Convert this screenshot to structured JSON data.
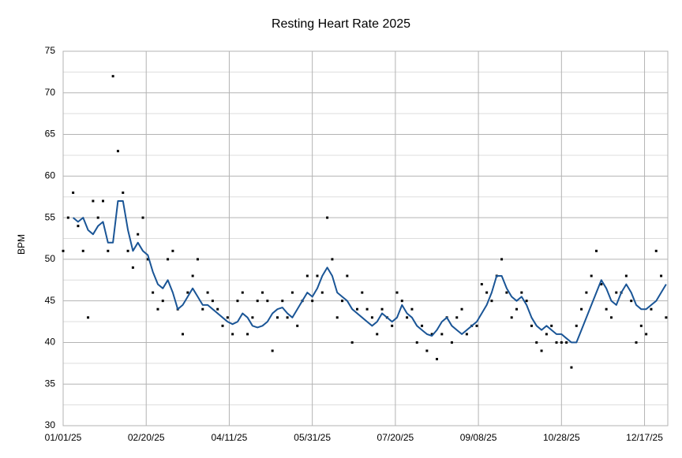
{
  "chart_data": {
    "type": "scatter",
    "title": "Resting Heart Rate 2025",
    "ylabel": "BPM",
    "x": [
      "01/01/25",
      "01/04/25",
      "01/07/25",
      "01/10/25",
      "01/13/25",
      "01/16/25",
      "01/19/25",
      "01/22/25",
      "01/25/25",
      "01/28/25",
      "01/31/25",
      "02/03/25",
      "02/06/25",
      "02/09/25",
      "02/12/25",
      "02/15/25",
      "02/18/25",
      "02/21/25",
      "02/24/25",
      "02/27/25",
      "03/02/25",
      "03/05/25",
      "03/08/25",
      "03/11/25",
      "03/14/25",
      "03/17/25",
      "03/20/25",
      "03/23/25",
      "03/26/25",
      "03/29/25",
      "04/01/25",
      "04/04/25",
      "04/07/25",
      "04/10/25",
      "04/13/25",
      "04/16/25",
      "04/19/25",
      "04/22/25",
      "04/25/25",
      "04/28/25",
      "05/01/25",
      "05/04/25",
      "05/07/25",
      "05/10/25",
      "05/13/25",
      "05/16/25",
      "05/19/25",
      "05/22/25",
      "05/25/25",
      "05/28/25",
      "05/31/25",
      "06/03/25",
      "06/06/25",
      "06/09/25",
      "06/12/25",
      "06/15/25",
      "06/18/25",
      "06/21/25",
      "06/24/25",
      "06/27/25",
      "06/30/25",
      "07/03/25",
      "07/06/25",
      "07/09/25",
      "07/12/25",
      "07/15/25",
      "07/18/25",
      "07/21/25",
      "07/24/25",
      "07/27/25",
      "07/30/25",
      "08/02/25",
      "08/05/25",
      "08/08/25",
      "08/11/25",
      "08/14/25",
      "08/17/25",
      "08/20/25",
      "08/23/25",
      "08/26/25",
      "08/29/25",
      "09/01/25",
      "09/04/25",
      "09/07/25",
      "09/10/25",
      "09/13/25",
      "09/16/25",
      "09/19/25",
      "09/22/25",
      "09/25/25",
      "09/28/25",
      "10/01/25",
      "10/04/25",
      "10/07/25",
      "10/10/25",
      "10/13/25",
      "10/16/25",
      "10/19/25",
      "10/22/25",
      "10/25/25",
      "10/28/25",
      "10/31/25",
      "11/03/25",
      "11/06/25",
      "11/09/25",
      "11/12/25",
      "11/15/25",
      "11/18/25",
      "11/21/25",
      "11/24/25",
      "11/27/25",
      "11/30/25",
      "12/03/25",
      "12/06/25",
      "12/09/25",
      "12/12/25",
      "12/15/25",
      "12/18/25",
      "12/21/25",
      "12/24/25",
      "12/27/25",
      "12/30/25"
    ],
    "series": [
      {
        "mode": "markers",
        "color": "#000000",
        "values": [
          51,
          55,
          58,
          54,
          51,
          43,
          57,
          55,
          57,
          51,
          72,
          63,
          58,
          51,
          49,
          53,
          55,
          50,
          46,
          44,
          45,
          50,
          51,
          44,
          41,
          46,
          48,
          50,
          44,
          46,
          45,
          44,
          42,
          43,
          41,
          45,
          46,
          41,
          43,
          45,
          46,
          45,
          39,
          43,
          45,
          43,
          46,
          42,
          45,
          48,
          45,
          48,
          46,
          55,
          50,
          43,
          45,
          48,
          40,
          44,
          46,
          44,
          43,
          41,
          44,
          43,
          42,
          46,
          45,
          43,
          44,
          40,
          42,
          39,
          41,
          38,
          41,
          43,
          40,
          43,
          44,
          41,
          42,
          42,
          47,
          46,
          45,
          48,
          50,
          46,
          43,
          44,
          46,
          45,
          42,
          40,
          39,
          41,
          42,
          40,
          40,
          40,
          37,
          42,
          44,
          46,
          48,
          51,
          47,
          44,
          43,
          46,
          46,
          48,
          45,
          40,
          42,
          41,
          44,
          51,
          48,
          43
        ]
      },
      {
        "mode": "line",
        "color": "#1a5596",
        "values": [
          null,
          null,
          55,
          54.5,
          55,
          53.5,
          53,
          54,
          54.5,
          52,
          52,
          57,
          57,
          53.5,
          51,
          52,
          51,
          50.5,
          48.5,
          47,
          46.5,
          47.5,
          46,
          44,
          44.5,
          45.5,
          46.5,
          45.5,
          44.5,
          44.5,
          44,
          43.5,
          43,
          42.5,
          42.2,
          42.5,
          43.5,
          43,
          42,
          41.8,
          42,
          42.5,
          43.5,
          44,
          44.2,
          43.5,
          43,
          44,
          45,
          46,
          45.5,
          46.5,
          48,
          49,
          48,
          46,
          45.5,
          45,
          44,
          43.5,
          43,
          42.5,
          42,
          42.5,
          43.5,
          43,
          42.5,
          43,
          44.5,
          43.5,
          43,
          42,
          41.5,
          41,
          40.8,
          41.5,
          42.5,
          43,
          42,
          41.5,
          41,
          41.5,
          42,
          42.5,
          43.5,
          44.5,
          46,
          48,
          48,
          46.5,
          45.5,
          45,
          45.5,
          44.5,
          43,
          42,
          41.5,
          42,
          41.5,
          41,
          41,
          40.5,
          40,
          40,
          41.5,
          43,
          44.5,
          46,
          47.5,
          46.5,
          45,
          44.5,
          46,
          47,
          46,
          44.5,
          44,
          44,
          44.5,
          45,
          46,
          47
        ]
      }
    ],
    "xlim": [
      "01/01/25",
      "12/31/25"
    ],
    "xticks": [
      "01/01/25",
      "02/20/25",
      "04/11/25",
      "05/31/25",
      "07/20/25",
      "09/08/25",
      "10/28/25",
      "12/17/25"
    ],
    "ylim": [
      30,
      75
    ],
    "yticks": [
      30,
      35,
      40,
      45,
      50,
      55,
      60,
      65,
      70,
      75
    ],
    "grid": true,
    "minor_ygrid": true
  }
}
